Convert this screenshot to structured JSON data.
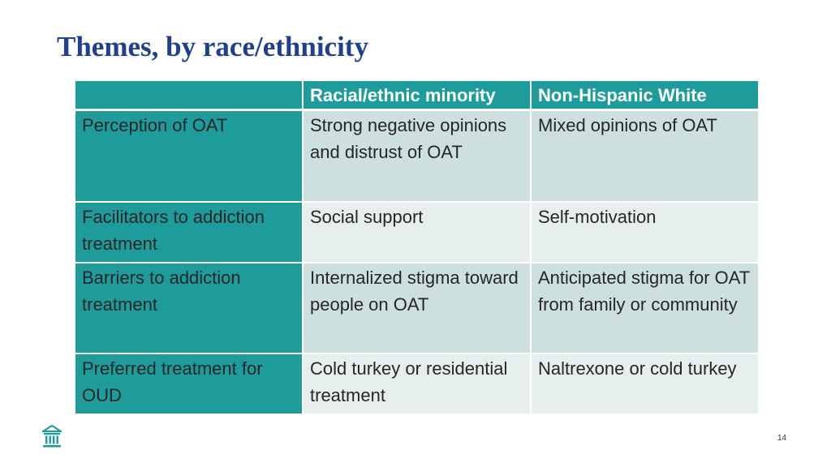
{
  "slide": {
    "title": "Themes, by race/ethnicity",
    "page_number": "14"
  },
  "table": {
    "headers": [
      "",
      "Racial/ethnic minority",
      "Non-Hispanic White"
    ],
    "rows": [
      {
        "label": "Perception of OAT",
        "minority": "Strong negative opinions and distrust of OAT",
        "white": "Mixed opinions of OAT"
      },
      {
        "label": "Facilitators to addiction treatment",
        "minority": "Social support",
        "white": "Self-motivation"
      },
      {
        "label": "Barriers to addiction treatment",
        "minority": "Internalized stigma toward people on OAT",
        "white": "Anticipated stigma for OAT from family or community"
      },
      {
        "label": "Preferred treatment for OUD",
        "minority": "Cold turkey or residential treatment",
        "white": "Naltrexone or cold turkey"
      }
    ]
  },
  "colors": {
    "title": "#1f3f8f",
    "header_teal": "#1e9c9c",
    "row_dark": "#cddfdf",
    "row_light": "#e7eeee"
  },
  "icons": {
    "logo": "columned-building-icon"
  }
}
